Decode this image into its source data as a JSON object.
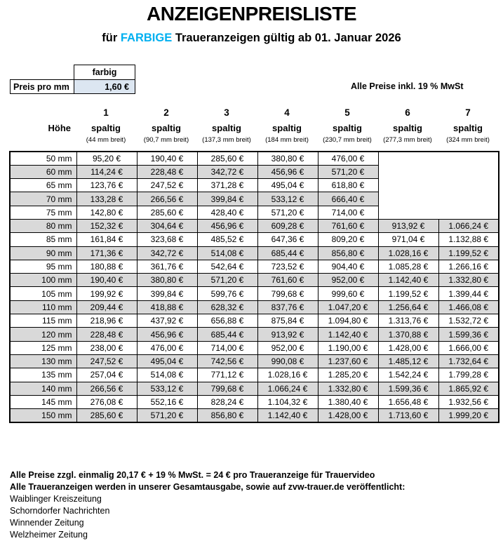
{
  "header": {
    "title": "ANZEIGENPREISLISTE",
    "subtitle_prefix": "für ",
    "subtitle_highlight": "FARBIGE",
    "subtitle_suffix": " Traueranzeigen gültig ab 01. Januar 2026",
    "highlight_color": "#00B0F0"
  },
  "price_box": {
    "column_header": "farbig",
    "row_label": "Preis pro mm",
    "value": "1,60 €",
    "value_bg": "#DCE6F1"
  },
  "vat_note": "Alle Preise inkl. 19 % MwSt",
  "table": {
    "height_header": "Höhe",
    "columns": [
      {
        "number": "1",
        "label": "spaltig",
        "width_note": "(44 mm breit)"
      },
      {
        "number": "2",
        "label": "spaltig",
        "width_note": "(90,7 mm breit)"
      },
      {
        "number": "3",
        "label": "spaltig",
        "width_note": "(137,3 mm breit)"
      },
      {
        "number": "4",
        "label": "spaltig",
        "width_note": "(184 mm breit)"
      },
      {
        "number": "5",
        "label": "spaltig",
        "width_note": "(230,7 mm breit)"
      },
      {
        "number": "6",
        "label": "spaltig",
        "width_note": "(277,3 mm breit)"
      },
      {
        "number": "7",
        "label": "spaltig",
        "width_note": "(324 mm breit)"
      }
    ],
    "rows": [
      {
        "height": "50 mm",
        "prices": [
          "95,20 €",
          "190,40 €",
          "285,60 €",
          "380,80 €",
          "476,00 €",
          null,
          null
        ]
      },
      {
        "height": "60 mm",
        "prices": [
          "114,24 €",
          "228,48 €",
          "342,72 €",
          "456,96 €",
          "571,20 €",
          null,
          null
        ]
      },
      {
        "height": "65 mm",
        "prices": [
          "123,76 €",
          "247,52 €",
          "371,28 €",
          "495,04 €",
          "618,80 €",
          null,
          null
        ]
      },
      {
        "height": "70 mm",
        "prices": [
          "133,28 €",
          "266,56 €",
          "399,84 €",
          "533,12 €",
          "666,40 €",
          null,
          null
        ]
      },
      {
        "height": "75 mm",
        "prices": [
          "142,80 €",
          "285,60 €",
          "428,40 €",
          "571,20 €",
          "714,00 €",
          null,
          null
        ]
      },
      {
        "height": "80 mm",
        "prices": [
          "152,32 €",
          "304,64 €",
          "456,96 €",
          "609,28 €",
          "761,60 €",
          "913,92 €",
          "1.066,24 €"
        ]
      },
      {
        "height": "85 mm",
        "prices": [
          "161,84 €",
          "323,68 €",
          "485,52 €",
          "647,36 €",
          "809,20 €",
          "971,04 €",
          "1.132,88 €"
        ]
      },
      {
        "height": "90 mm",
        "prices": [
          "171,36 €",
          "342,72 €",
          "514,08 €",
          "685,44 €",
          "856,80 €",
          "1.028,16 €",
          "1.199,52 €"
        ]
      },
      {
        "height": "95 mm",
        "prices": [
          "180,88 €",
          "361,76 €",
          "542,64 €",
          "723,52 €",
          "904,40 €",
          "1.085,28 €",
          "1.266,16 €"
        ]
      },
      {
        "height": "100 mm",
        "prices": [
          "190,40 €",
          "380,80 €",
          "571,20 €",
          "761,60 €",
          "952,00 €",
          "1.142,40 €",
          "1.332,80 €"
        ]
      },
      {
        "height": "105 mm",
        "prices": [
          "199,92 €",
          "399,84 €",
          "599,76 €",
          "799,68 €",
          "999,60 €",
          "1.199,52 €",
          "1.399,44 €"
        ]
      },
      {
        "height": "110 mm",
        "prices": [
          "209,44 €",
          "418,88 €",
          "628,32 €",
          "837,76 €",
          "1.047,20 €",
          "1.256,64 €",
          "1.466,08 €"
        ]
      },
      {
        "height": "115 mm",
        "prices": [
          "218,96 €",
          "437,92 €",
          "656,88 €",
          "875,84 €",
          "1.094,80 €",
          "1.313,76 €",
          "1.532,72 €"
        ]
      },
      {
        "height": "120 mm",
        "prices": [
          "228,48 €",
          "456,96 €",
          "685,44 €",
          "913,92 €",
          "1.142,40 €",
          "1.370,88 €",
          "1.599,36 €"
        ]
      },
      {
        "height": "125 mm",
        "prices": [
          "238,00 €",
          "476,00 €",
          "714,00 €",
          "952,00 €",
          "1.190,00 €",
          "1.428,00 €",
          "1.666,00 €"
        ]
      },
      {
        "height": "130 mm",
        "prices": [
          "247,52 €",
          "495,04 €",
          "742,56 €",
          "990,08 €",
          "1.237,60 €",
          "1.485,12 €",
          "1.732,64 €"
        ]
      },
      {
        "height": "135 mm",
        "prices": [
          "257,04 €",
          "514,08 €",
          "771,12 €",
          "1.028,16 €",
          "1.285,20 €",
          "1.542,24 €",
          "1.799,28 €"
        ]
      },
      {
        "height": "140 mm",
        "prices": [
          "266,56 €",
          "533,12 €",
          "799,68 €",
          "1.066,24 €",
          "1.332,80 €",
          "1.599,36 €",
          "1.865,92 €"
        ]
      },
      {
        "height": "145 mm",
        "prices": [
          "276,08 €",
          "552,16 €",
          "828,24 €",
          "1.104,32 €",
          "1.380,40 €",
          "1.656,48 €",
          "1.932,56 €"
        ]
      },
      {
        "height": "150 mm",
        "prices": [
          "285,60 €",
          "571,20 €",
          "856,80 €",
          "1.142,40 €",
          "1.428,00 €",
          "1.713,60 €",
          "1.999,20 €"
        ]
      }
    ],
    "colors": {
      "row_alt_bg": "#D9D9D9",
      "border": "#000000"
    }
  },
  "footer": {
    "notes": [
      "Alle Preise zzgl. einmalig 20,17 € + 19 % MwSt. = 24 € pro Traueranzeige für Trauervideo",
      "Alle Traueranzeigen werden in unserer Gesamtausgabe, sowie auf zvw-trauer.de veröffentlicht:"
    ],
    "newspapers": [
      "Waiblinger Kreiszeitung",
      "Schorndorfer Nachrichten",
      "Winnender Zeitung",
      "Welzheimer Zeitung"
    ]
  }
}
